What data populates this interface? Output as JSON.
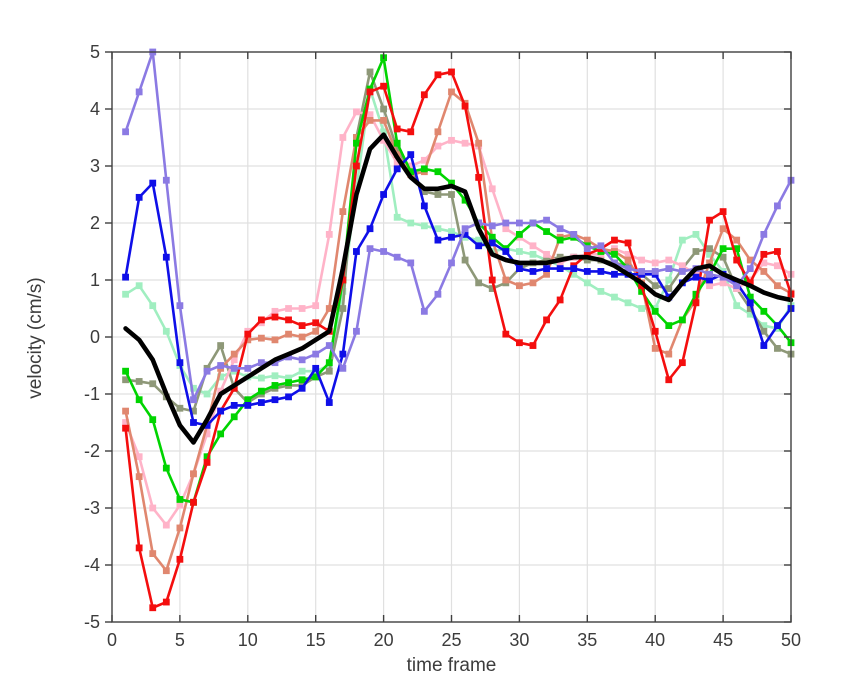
{
  "chart_data": {
    "type": "line",
    "title": "",
    "xlabel": "time frame",
    "ylabel": "velocity (cm/s)",
    "xlim": [
      0,
      50
    ],
    "ylim": [
      -5,
      5
    ],
    "x_ticks": [
      0,
      5,
      10,
      15,
      20,
      25,
      30,
      35,
      40,
      45,
      50
    ],
    "y_ticks": [
      -5,
      -4,
      -3,
      -2,
      -1,
      0,
      1,
      2,
      3,
      4,
      5
    ],
    "grid": true,
    "legend": false,
    "x": [
      1,
      2,
      3,
      4,
      5,
      6,
      7,
      8,
      9,
      10,
      11,
      12,
      13,
      14,
      15,
      16,
      17,
      18,
      19,
      20,
      21,
      22,
      23,
      24,
      25,
      26,
      27,
      28,
      29,
      30,
      31,
      32,
      33,
      34,
      35,
      36,
      37,
      38,
      39,
      40,
      41,
      42,
      43,
      44,
      45,
      46,
      47,
      48,
      49,
      50
    ],
    "series": [
      {
        "name": "mint-green",
        "color": "#A0EEC0",
        "marker": "square",
        "line_width": 2.6,
        "values": [
          0.75,
          0.9,
          0.55,
          0.1,
          -0.5,
          -0.9,
          -1.0,
          -0.7,
          -0.6,
          -0.7,
          -0.72,
          -0.68,
          -0.72,
          -0.6,
          -0.6,
          -0.5,
          0.8,
          2.6,
          4.35,
          3.6,
          2.1,
          2.0,
          1.95,
          1.9,
          1.85,
          1.75,
          1.7,
          1.5,
          1.55,
          1.5,
          1.45,
          1.35,
          1.25,
          1.1,
          0.95,
          0.8,
          0.7,
          0.6,
          0.5,
          0.5,
          1.0,
          1.7,
          1.8,
          1.45,
          1.15,
          0.55,
          0.4,
          0.2,
          0.15,
          0.55
        ]
      },
      {
        "name": "olive-green",
        "color": "#8E9878",
        "marker": "square",
        "line_width": 2.6,
        "values": [
          -0.75,
          -0.78,
          -0.82,
          -1.05,
          -1.25,
          -1.3,
          -0.55,
          -0.15,
          -0.9,
          -1.15,
          -1.0,
          -0.9,
          -0.85,
          -0.85,
          -0.7,
          -0.6,
          0.5,
          3.5,
          4.65,
          4.0,
          3.3,
          2.9,
          2.55,
          2.5,
          2.5,
          1.35,
          0.95,
          0.85,
          0.95,
          1.2,
          1.3,
          1.35,
          1.4,
          1.4,
          1.35,
          1.35,
          1.3,
          1.25,
          1.1,
          0.9,
          0.85,
          1.2,
          1.5,
          1.55,
          1.4,
          0.85,
          0.5,
          0.1,
          -0.2,
          -0.3
        ]
      },
      {
        "name": "pink",
        "color": "#FFB3C8",
        "marker": "square",
        "line_width": 2.6,
        "values": [
          -1.5,
          -2.1,
          -3.0,
          -3.3,
          -2.95,
          -2.4,
          -1.7,
          -0.95,
          -0.4,
          0.1,
          0.25,
          0.45,
          0.5,
          0.5,
          0.55,
          1.8,
          3.5,
          3.95,
          3.9,
          3.45,
          3.05,
          3.0,
          3.1,
          3.35,
          3.45,
          3.4,
          3.35,
          2.6,
          1.9,
          1.75,
          1.6,
          1.45,
          1.3,
          1.4,
          1.45,
          1.45,
          1.55,
          1.45,
          1.35,
          1.3,
          1.35,
          1.25,
          1.1,
          0.9,
          0.95,
          0.85,
          1.0,
          1.3,
          1.25,
          1.1
        ]
      },
      {
        "name": "salmon",
        "color": "#E0876F",
        "marker": "square",
        "line_width": 2.6,
        "values": [
          -1.3,
          -2.45,
          -3.8,
          -4.1,
          -3.35,
          -2.4,
          -1.55,
          -0.55,
          -0.3,
          -0.05,
          -0.02,
          -0.05,
          0.05,
          0.0,
          0.1,
          0.5,
          2.2,
          3.5,
          3.8,
          3.8,
          3.2,
          2.85,
          2.9,
          3.6,
          4.3,
          4.1,
          3.4,
          1.7,
          1.0,
          0.9,
          0.95,
          1.1,
          1.75,
          1.8,
          1.7,
          1.55,
          1.5,
          1.35,
          0.95,
          -0.2,
          -0.3,
          0.3,
          0.65,
          1.3,
          1.9,
          1.7,
          1.35,
          1.15,
          0.9,
          0.77
        ]
      },
      {
        "name": "bright-green",
        "color": "#00D400",
        "marker": "square",
        "line_width": 2.6,
        "values": [
          -0.6,
          -1.1,
          -1.45,
          -2.3,
          -2.85,
          -2.9,
          -2.1,
          -1.7,
          -1.4,
          -1.1,
          -0.95,
          -0.85,
          -0.8,
          -0.75,
          -0.7,
          -0.45,
          1.0,
          3.4,
          4.35,
          4.9,
          3.4,
          2.9,
          2.95,
          2.9,
          2.7,
          2.4,
          2.0,
          1.75,
          1.55,
          1.8,
          2.0,
          1.85,
          1.7,
          1.75,
          1.6,
          1.5,
          1.45,
          1.2,
          0.8,
          0.45,
          0.2,
          0.3,
          0.75,
          1.1,
          1.55,
          1.55,
          0.7,
          0.45,
          0.2,
          -0.1
        ]
      },
      {
        "name": "red",
        "color": "#F40E0E",
        "marker": "square",
        "line_width": 2.6,
        "values": [
          -1.6,
          -3.7,
          -4.75,
          -4.65,
          -3.9,
          -2.9,
          -2.2,
          -1.3,
          -0.9,
          0.05,
          0.3,
          0.35,
          0.3,
          0.2,
          0.25,
          0.1,
          1.0,
          3.0,
          4.3,
          4.4,
          3.65,
          3.6,
          4.25,
          4.6,
          4.65,
          4.05,
          2.8,
          1.0,
          0.05,
          -0.1,
          -0.15,
          0.3,
          0.65,
          1.25,
          1.45,
          1.55,
          1.7,
          1.65,
          0.9,
          0.1,
          -0.75,
          -0.45,
          0.6,
          2.05,
          2.2,
          1.35,
          0.95,
          1.45,
          1.5,
          0.75
        ]
      },
      {
        "name": "blue",
        "color": "#0F0FE8",
        "marker": "square",
        "line_width": 2.6,
        "values": [
          1.05,
          2.45,
          2.7,
          1.4,
          -0.45,
          -1.5,
          -1.55,
          -1.3,
          -1.2,
          -1.2,
          -1.15,
          -1.1,
          -1.05,
          -0.9,
          -0.55,
          -1.15,
          -0.3,
          1.5,
          1.9,
          2.5,
          2.95,
          3.2,
          2.3,
          1.7,
          1.75,
          1.8,
          1.6,
          1.65,
          1.5,
          1.2,
          1.15,
          1.2,
          1.2,
          1.2,
          1.15,
          1.15,
          1.1,
          1.1,
          1.1,
          1.1,
          0.7,
          0.95,
          1.05,
          1.0,
          1.1,
          0.95,
          0.6,
          -0.15,
          0.2,
          0.5
        ]
      },
      {
        "name": "purple",
        "color": "#8B7AE3",
        "marker": "square",
        "line_width": 2.6,
        "values": [
          3.6,
          4.3,
          5.0,
          2.75,
          0.55,
          -1.1,
          -0.6,
          -0.5,
          -0.55,
          -0.55,
          -0.45,
          -0.45,
          -0.35,
          -0.4,
          -0.3,
          -0.15,
          -0.55,
          0.1,
          1.55,
          1.5,
          1.4,
          1.3,
          0.45,
          0.75,
          1.3,
          1.9,
          2.0,
          1.95,
          2.0,
          2.0,
          2.0,
          2.05,
          1.9,
          1.8,
          1.55,
          1.6,
          1.3,
          1.2,
          1.15,
          1.15,
          1.2,
          1.15,
          1.2,
          1.1,
          1.05,
          0.9,
          1.2,
          1.8,
          2.3,
          2.75
        ]
      },
      {
        "name": "thick-black",
        "color": "#000000",
        "marker": "none",
        "line_width": 4.6,
        "values": [
          0.15,
          -0.05,
          -0.4,
          -1.0,
          -1.55,
          -1.85,
          -1.45,
          -1.0,
          -0.85,
          -0.7,
          -0.55,
          -0.4,
          -0.3,
          -0.2,
          -0.05,
          0.1,
          1.2,
          2.5,
          3.3,
          3.55,
          3.15,
          2.8,
          2.6,
          2.6,
          2.65,
          2.55,
          1.9,
          1.45,
          1.35,
          1.3,
          1.3,
          1.3,
          1.35,
          1.4,
          1.4,
          1.35,
          1.25,
          1.1,
          0.95,
          0.75,
          0.65,
          0.95,
          1.2,
          1.25,
          1.1,
          1.0,
          0.9,
          0.78,
          0.7,
          0.65
        ]
      }
    ]
  },
  "style_colors": {
    "grid": "#E0E0E0",
    "axis_box": "#3F3F3F",
    "tick_label": "#3C3C3C",
    "background": "#FFFFFF"
  }
}
